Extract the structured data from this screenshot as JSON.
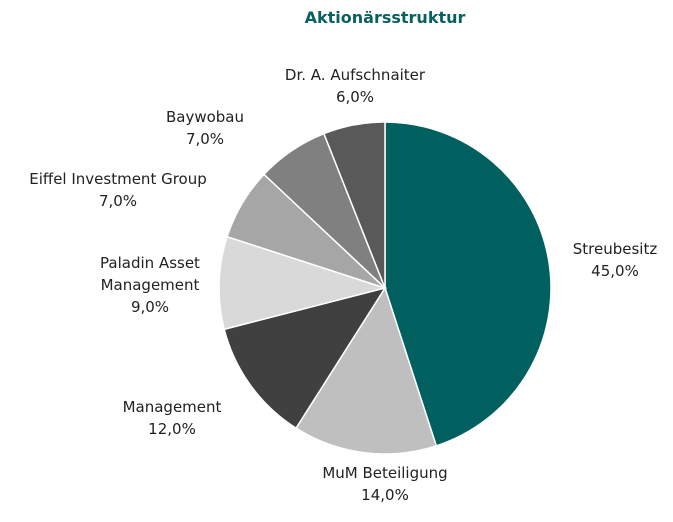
{
  "chart_data": {
    "type": "pie",
    "title": "Aktionärsstruktur",
    "categories": [
      "Streubesitz",
      "MuM Beteiligung",
      "Management",
      "Paladin Asset Management",
      "Eiffel Investment Group",
      "Baywobau",
      "Dr. A. Aufschnaiter"
    ],
    "values": [
      45,
      14,
      12,
      9,
      7,
      7,
      6
    ],
    "value_labels": [
      "45,0%",
      "14,0%",
      "12,0%",
      "9,0%",
      "7,0%",
      "7,0%",
      "6,0%"
    ],
    "colors": [
      "#005f5f",
      "#bfbfbf",
      "#404040",
      "#d9d9d9",
      "#a6a6a6",
      "#808080",
      "#595959"
    ]
  }
}
